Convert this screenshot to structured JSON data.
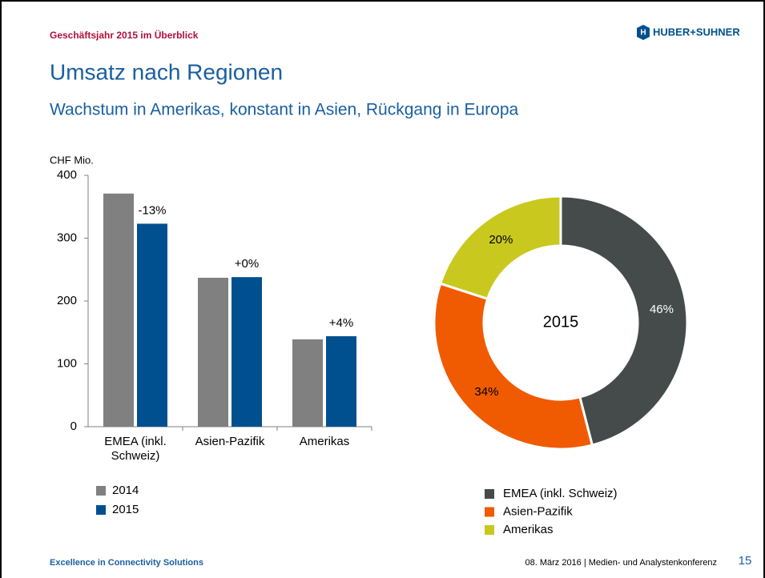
{
  "header": {
    "kicker": "Geschäftsjahr 2015 im Überblick",
    "logo": "HUBER+SUHNER",
    "title": "Umsatz nach Regionen",
    "subtitle": "Wachstum in Amerikas, konstant in Asien, Rückgang in Europa"
  },
  "footer": {
    "left": "Excellence in Connectivity Solutions",
    "right": "08. März 2016  |  Medien- und Analystenkonferenz",
    "page": "15"
  },
  "chart_data": [
    {
      "type": "bar",
      "y_label": "CHF Mio.",
      "categories": [
        "EMEA (inkl. Schweiz)",
        "Asien-Pazifik",
        "Amerikas"
      ],
      "series": [
        {
          "name": "2014",
          "color": "#808080",
          "values": [
            371,
            237,
            139
          ]
        },
        {
          "name": "2015",
          "color": "#00508f",
          "values": [
            323,
            238,
            144
          ]
        }
      ],
      "growth_labels": [
        "-13%",
        "+0%",
        "+4%"
      ],
      "ylim": [
        0,
        400
      ],
      "yticks": [
        0,
        100,
        200,
        300,
        400
      ]
    },
    {
      "type": "pie",
      "center_label": "2015",
      "categories": [
        "EMEA (inkl. Schweiz)",
        "Asien-Pazifik",
        "Amerikas"
      ],
      "values": [
        46,
        34,
        20
      ],
      "value_labels": [
        "46%",
        "34%",
        "20%"
      ],
      "colors": [
        "#454b4b",
        "#f05a00",
        "#c9c81f"
      ]
    }
  ]
}
